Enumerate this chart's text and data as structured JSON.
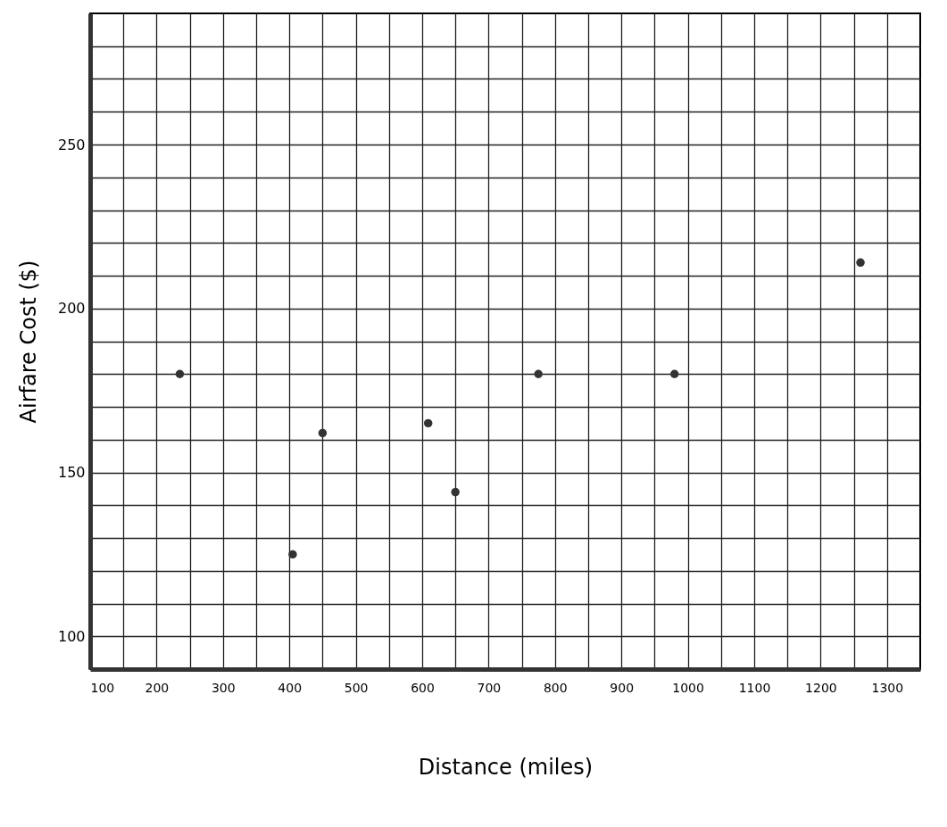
{
  "chart_data": {
    "type": "scatter",
    "xlabel": "Distance (miles)",
    "ylabel": "Airfare Cost ($)",
    "x": [
      235,
      405,
      450,
      609,
      650,
      775,
      980,
      1260
    ],
    "series": [
      {
        "color": "#333333",
        "values": [
          180,
          125,
          162,
          165,
          144,
          180,
          180,
          214
        ]
      }
    ],
    "xlim": [
      100,
      1350
    ],
    "xticks": [
      100,
      {
        "value": 150,
        "label": null
      },
      200,
      {
        "value": 250,
        "label": null
      },
      300,
      {
        "value": 350,
        "label": null
      },
      400,
      {
        "value": 450,
        "label": null
      },
      500,
      {
        "value": 550,
        "label": null
      },
      600,
      {
        "value": 650,
        "label": null
      },
      700,
      {
        "value": 750,
        "label": null
      },
      800,
      {
        "value": 850,
        "label": null
      },
      900,
      {
        "value": 950,
        "label": null
      },
      1000,
      {
        "value": 1050,
        "label": null
      },
      1100,
      {
        "value": 1150,
        "label": null
      },
      1200,
      {
        "value": 1250,
        "label": null
      },
      1300
    ],
    "ylim": [
      90,
      290
    ],
    "yticks": [
      100,
      {
        "value": 110,
        "label": null
      },
      {
        "value": 120,
        "label": null
      },
      {
        "value": 130,
        "label": null
      },
      {
        "value": 140,
        "label": null
      },
      150,
      {
        "value": 160,
        "label": null
      },
      {
        "value": 170,
        "label": null
      },
      {
        "value": 180,
        "label": null
      },
      {
        "value": 190,
        "label": null
      },
      200,
      {
        "value": 210,
        "label": null
      },
      {
        "value": 220,
        "label": null
      },
      {
        "value": 230,
        "label": null
      },
      {
        "value": 240,
        "label": null
      },
      250,
      {
        "value": 260,
        "label": null
      },
      {
        "value": 270,
        "label": null
      },
      {
        "value": 280,
        "label": null
      }
    ],
    "grid": true,
    "marker": "circle",
    "legend": false
  }
}
